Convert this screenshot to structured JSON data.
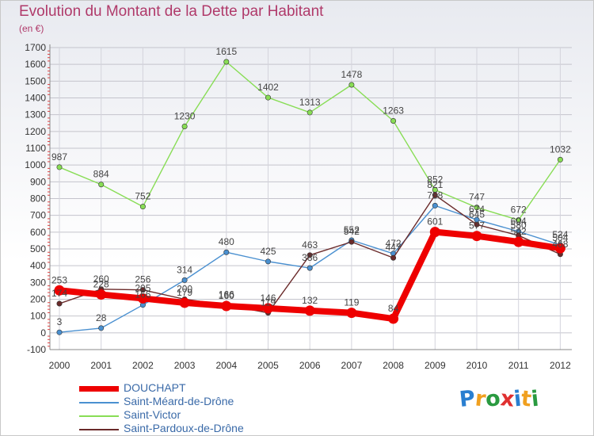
{
  "header": {
    "title": "Evolution du Montant de la Dette par Habitant",
    "unit": "(en €)"
  },
  "logo": {
    "text": "Proxiti",
    "letters": [
      "P",
      "r",
      "o",
      "x",
      "i",
      "t",
      "i"
    ],
    "colors": [
      "#2a7fd0",
      "#f0a020",
      "#2a9a40",
      "#e03030",
      "#2a7fd0",
      "#f0a020",
      "#2a9a40"
    ]
  },
  "chart_data": {
    "type": "line",
    "title": "Evolution du Montant de la Dette par Habitant",
    "ylabel": "(en €)",
    "xlabel": "",
    "x": [
      "2000",
      "2001",
      "2002",
      "2003",
      "2004",
      "2005",
      "2006",
      "2007",
      "2008",
      "2009",
      "2010",
      "2011",
      "2012"
    ],
    "ylim": [
      -100,
      1700
    ],
    "yticks": [
      -100,
      0,
      100,
      200,
      300,
      400,
      500,
      600,
      700,
      800,
      900,
      1000,
      1100,
      1200,
      1300,
      1400,
      1500,
      1600,
      1700
    ],
    "grid": true,
    "legend_position": "bottom-left",
    "series": [
      {
        "name": "DOUCHAPT",
        "color": "#ee0000",
        "values": [
          253,
          228,
          205,
          179,
          160,
          146,
          132,
          119,
          84,
          601,
          577,
          542,
          504
        ],
        "labels": [
          "253",
          "228",
          "205",
          "179",
          "160",
          "146",
          "132",
          "119",
          "84",
          "601",
          "577",
          "542",
          "504"
        ],
        "emphasis": true
      },
      {
        "name": "Saint-Méard-de-Drône",
        "color": "#4a90d0",
        "values": [
          3,
          28,
          166,
          314,
          480,
          425,
          386,
          552,
          472,
          758,
          674,
          604,
          524
        ],
        "labels": [
          "3",
          "28",
          "166",
          "314",
          "480",
          "425",
          "386",
          "552",
          "472",
          "758",
          "674",
          "604",
          "524"
        ],
        "emphasis": false
      },
      {
        "name": "Saint-Victor",
        "color": "#88dd55",
        "values": [
          987,
          884,
          752,
          1230,
          1615,
          1402,
          1313,
          1478,
          1263,
          852,
          747,
          672,
          1032
        ],
        "labels": [
          "987",
          "884",
          "752",
          "1230",
          "1615",
          "1402",
          "1313",
          "1478",
          "1263",
          "852",
          "747",
          "672",
          "1032"
        ],
        "emphasis": false
      },
      {
        "name": "Saint-Pardoux-de-Drône",
        "color": "#6a2a2a",
        "values": [
          174,
          260,
          256,
          200,
          166,
          119,
          463,
          542,
          447,
          821,
          645,
          580,
          468
        ],
        "labels": [
          "174",
          "260",
          "256",
          "200",
          "166",
          "119",
          "463",
          "542",
          "447",
          "821",
          "645",
          "580",
          "468"
        ],
        "emphasis": false
      }
    ]
  }
}
